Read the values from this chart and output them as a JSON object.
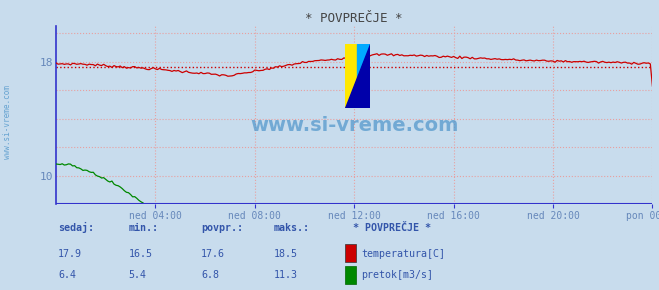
{
  "title": "* POVPREČJE *",
  "bg_color": "#c8dced",
  "plot_bg_color": "#c8dced",
  "grid_color": "#e8a0a0",
  "grid_style": ":",
  "axis_color": "#6688bb",
  "temp_color": "#cc0000",
  "flow_color": "#008800",
  "border_color": "#3333cc",
  "watermark_color": "#5599cc",
  "watermark_text": "www.si-vreme.com",
  "x_tick_labels": [
    "ned 04:00",
    "ned 08:00",
    "ned 12:00",
    "ned 16:00",
    "ned 20:00",
    "pon 00:00"
  ],
  "x_tick_positions": [
    4,
    8,
    12,
    16,
    20,
    24
  ],
  "xlim": [
    0,
    24
  ],
  "ylim": [
    8.0,
    20.5
  ],
  "ytick_vals": [
    10,
    18
  ],
  "temp_avg": 17.6,
  "flow_avg": 6.8,
  "temp_min": 16.5,
  "temp_max": 18.5,
  "temp_sedaj": 17.9,
  "flow_sedaj": 6.4,
  "flow_min": 5.4,
  "flow_max": 11.3,
  "flow_povpr": 6.8,
  "legend_title": "* POVPREČJE *",
  "info_color": "#3355aa",
  "font_color": "#3355aa",
  "sidebar_text": "www.si-vreme.com",
  "sidebar_color": "#5599cc"
}
